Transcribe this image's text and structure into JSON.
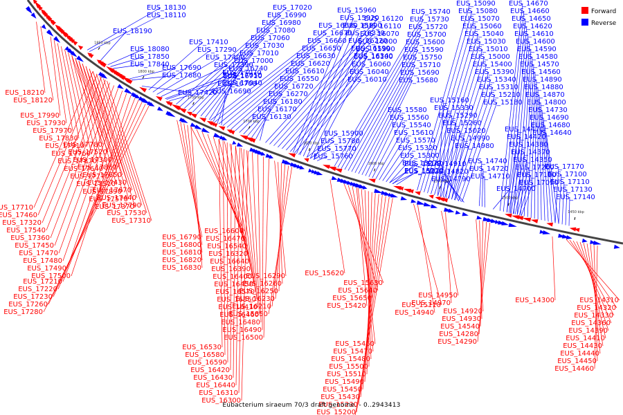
{
  "caption": "Eubacterium siraeum 70/3 draft genome. - 0..2943413",
  "legend": {
    "forward": {
      "label": "Forward",
      "color": "#ff0000"
    },
    "reverse": {
      "label": "Reverse",
      "color": "#0000ff"
    }
  },
  "axis_color": "#444444",
  "tick_labels": [
    "1850 kbp",
    "1800 kbp",
    "1750 kbp",
    "1700 kbp",
    "1650 kbp",
    "1600 kbp",
    "1550 kbp",
    "1500 kbp",
    "1450 kbp"
  ],
  "forward_labels": [
    "EUS_18210",
    "EUS_18120",
    "EUS_17990",
    "EUS_17930",
    "EUS_17970",
    "EUS_17830",
    "EUS_17910",
    "EUS_17760",
    "EUS_17870",
    "EUS_17640",
    "EUS_17770",
    "EUS_17510",
    "EUS_17890",
    "EUS_17570",
    "EUS_17370",
    "EUS_17780",
    "EUS_17520",
    "EUS_17300",
    "EUS_17860",
    "EUS_17650",
    "EUS_17430",
    "EUS_17670",
    "EUS_17440",
    "EUS_17790",
    "EUS_17530",
    "EUS_17310",
    "EUS_17710",
    "EUS_17460",
    "EUS_17320",
    "EUS_17540",
    "EUS_17360",
    "EUS_17450",
    "EUS_17470",
    "EUS_17480",
    "EUS_17490",
    "EUS_17500",
    "EUS_17210",
    "EUS_17220",
    "EUS_17230",
    "EUS_17260",
    "EUS_17280",
    "EUS_16790",
    "EUS_16800",
    "EUS_16810",
    "EUS_16820",
    "EUS_16830",
    "EUS_16600",
    "EUS_16470",
    "EUS_16540",
    "EUS_16320",
    "EUS_16640",
    "EUS_16390",
    "EUS_16400",
    "EUS_16450",
    "EUS_16570",
    "EUS_16350",
    "EUS_16410",
    "EUS_16460",
    "EUS_16480",
    "EUS_16490",
    "EUS_16500",
    "EUS_16530",
    "EUS_16580",
    "EUS_16590",
    "EUS_16420",
    "EUS_16430",
    "EUS_16440",
    "EUS_16310",
    "EUS_16300",
    "EUS_16290",
    "EUS_16260",
    "EUS_16250",
    "EUS_16230",
    "EUS_16210",
    "EUS_15850",
    "EUS_15620",
    "EUS_15630",
    "EUS_15640",
    "EUS_15650",
    "EUS_15420",
    "EUS_15460",
    "EUS_15470",
    "EUS_15480",
    "EUS_15500",
    "EUS_15510",
    "EUS_15490",
    "EUS_15450",
    "EUS_15430",
    "EUS_15230",
    "EUS_15200",
    "EUS_15100",
    "EUS_15110",
    "EUS_14940",
    "EUS_14950",
    "EUS_14970",
    "EUS_14920",
    "EUS_14930",
    "EUS_14540",
    "EUS_14280",
    "EUS_14290",
    "EUS_14300",
    "EUS_14310",
    "EUS_14320",
    "EUS_14330",
    "EUS_14360",
    "EUS_14390",
    "EUS_14410",
    "EUS_14430",
    "EUS_14440",
    "EUS_14450",
    "EUS_14460"
  ],
  "reverse_labels": [
    "EUS_18130",
    "EUS_18110",
    "EUS_18190",
    "EUS_18080",
    "EUS_17850",
    "EUS_17840",
    "EUS_17690",
    "EUS_17680",
    "EUS_17420",
    "EUS_17410",
    "EUS_17290",
    "EUS_17400",
    "EUS_17390",
    "EUS_17070",
    "EUS_17050",
    "EUS_17040",
    "EUS_17020",
    "EUS_16990",
    "EUS_16980",
    "EUS_17080",
    "EUS_17060",
    "EUS_17030",
    "EUS_17010",
    "EUS_17000",
    "EUS_16740",
    "EUS_16710",
    "EUS_16700",
    "EUS_16690",
    "EUS_16680",
    "EUS_16670",
    "EUS_16660",
    "EUS_16650",
    "EUS_16630",
    "EUS_16620",
    "EUS_16610",
    "EUS_16550",
    "EUS_16720",
    "EUS_16270",
    "EUS_16180",
    "EUS_16170",
    "EUS_16130",
    "EUS_16120",
    "EUS_16110",
    "EUS_16070",
    "EUS_16000",
    "EUS_15990",
    "EUS_16100",
    "EUS_16060",
    "EUS_16040",
    "EUS_16010",
    "EUS_15960",
    "EUS_15920",
    "EUS_15890",
    "EUS_16330",
    "EUS_16220",
    "EUS_16190",
    "EUS_16340",
    "EUS_15900",
    "EUS_15780",
    "EUS_15770",
    "EUS_15760",
    "EUS_15740",
    "EUS_15730",
    "EUS_15720",
    "EUS_15700",
    "EUS_15600",
    "EUS_15590",
    "EUS_15750",
    "EUS_15710",
    "EUS_15690",
    "EUS_15680",
    "EUS_15580",
    "EUS_15560",
    "EUS_15540",
    "EUS_15610",
    "EUS_15570",
    "EUS_15320",
    "EUS_15300",
    "EUS_15270",
    "EUS_15220",
    "EUS_15140",
    "EUS_15130",
    "EUS_15090",
    "EUS_15080",
    "EUS_15070",
    "EUS_15060",
    "EUS_15040",
    "EUS_15030",
    "EUS_15010",
    "EUS_15000",
    "EUS_15400",
    "EUS_15390",
    "EUS_15340",
    "EUS_15310",
    "EUS_15210",
    "EUS_15180",
    "EUS_15160",
    "EUS_15330",
    "EUS_15290",
    "EUS_15260",
    "EUS_15020",
    "EUS_14990",
    "EUS_14980",
    "EUS_14910",
    "EUS_14820",
    "EUS_14790",
    "EUS_14740",
    "EUS_14720",
    "EUS_14710",
    "EUS_14700",
    "EUS_14670",
    "EUS_14660",
    "EUS_14650",
    "EUS_14620",
    "EUS_14610",
    "EUS_14600",
    "EUS_14590",
    "EUS_14580",
    "EUS_14570",
    "EUS_14560",
    "EUS_14890",
    "EUS_14880",
    "EUS_14870",
    "EUS_14800",
    "EUS_14730",
    "EUS_14690",
    "EUS_14680",
    "EUS_14640",
    "EUS_14470",
    "EUS_14420",
    "EUS_14380",
    "EUS_14370",
    "EUS_14350",
    "EUS_17200",
    "EUS_17190",
    "EUS_17090",
    "EUS_17170",
    "EUS_17100",
    "EUS_17110",
    "EUS_17130",
    "EUS_17140",
    "EUS_17150",
    "EUS_17160",
    "EUS_17180",
    "EUS_16960",
    "EUS_16870",
    "EUS_16930",
    "EUS_16750",
    "EUS_16730",
    "EUS_16850",
    "EUS_16860",
    "EUS_16890",
    "EUS_16900",
    "EUS_16920",
    "EUS_16940",
    "EUS_16950",
    "EUS_16090",
    "EUS_16150",
    "EUS_16200",
    "EUS_16160",
    "EUS_16080",
    "EUS_15940",
    "EUS_15790",
    "EUS_15800",
    "EUS_15810",
    "EUS_15970",
    "EUS_15980",
    "EUS_15870",
    "EUS_16020",
    "EUS_15820",
    "EUS_15860",
    "EUS_15880",
    "EUS_16050",
    "EUS_15380",
    "EUS_15350",
    "EUS_15360",
    "EUS_14810",
    "EUS_14750",
    "EUS_14760",
    "EUS_14780",
    "EUS_14830",
    "EUS_14840"
  ]
}
